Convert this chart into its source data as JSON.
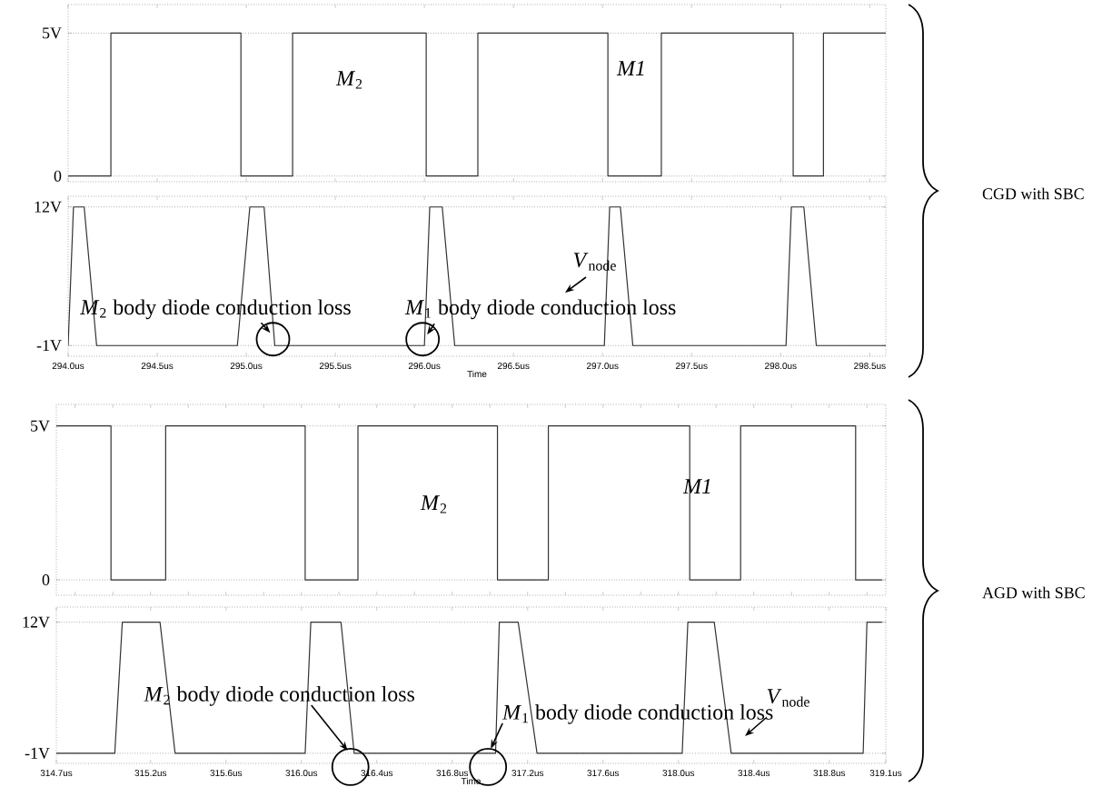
{
  "chart_data": [
    {
      "type": "line",
      "xlim": [
        294.0,
        298.59
      ],
      "ylim": [
        -0.2,
        6
      ],
      "yticks": [
        0,
        {
          "value": 5,
          "label": "5V"
        }
      ],
      "grid": "y",
      "tick_labels": "y",
      "series": [
        {
          "color": "#333333",
          "x": [
            294.0,
            294.24,
            294.24,
            294.97,
            294.97,
            295.26,
            295.26,
            296.01,
            296.01,
            296.3,
            296.3,
            297.03,
            297.03,
            297.33,
            297.33,
            298.07,
            298.07,
            298.24,
            298.24,
            298.59
          ],
          "values": [
            0,
            0,
            5,
            5,
            0,
            0,
            5,
            5,
            0,
            0,
            5,
            5,
            0,
            0,
            5,
            5,
            0,
            0,
            5,
            5
          ]
        }
      ],
      "annotations": [
        "*M*$_{2}$",
        "*M1*",
        "CGD with SBC"
      ]
    },
    {
      "type": "line",
      "xlabel": "Time",
      "xlim": [
        294.0,
        298.59
      ],
      "xticks": [
        {
          "value": 294.0,
          "label": "294.0us"
        },
        {
          "value": 294.5,
          "label": "294.5us"
        },
        {
          "value": 295.0,
          "label": "295.0us"
        },
        {
          "value": 295.5,
          "label": "295.5us"
        },
        {
          "value": 296.0,
          "label": "296.0us"
        },
        {
          "value": 296.5,
          "label": "296.5us"
        },
        {
          "value": 297.0,
          "label": "297.0us"
        },
        {
          "value": 297.5,
          "label": "297.5us"
        },
        {
          "value": 298.0,
          "label": "298.0us"
        },
        {
          "value": 298.5,
          "label": "298.5us"
        }
      ],
      "ylim": [
        -2,
        13
      ],
      "yticks": [
        {
          "value": -1,
          "label": "-1V"
        },
        {
          "value": 12,
          "label": "12V"
        }
      ],
      "grid": "y",
      "series": [
        {
          "color": "#333333",
          "x": [
            294.0,
            294.03,
            294.09,
            294.16,
            294.95,
            295.02,
            295.1,
            295.16,
            296.0,
            296.03,
            296.1,
            296.17,
            297.01,
            297.04,
            297.1,
            297.17,
            298.03,
            298.06,
            298.13,
            298.2,
            298.59
          ],
          "values": [
            -1,
            12,
            12,
            -1,
            -1,
            12,
            12,
            -1,
            -1,
            12,
            12,
            -1,
            -1,
            12,
            12,
            -1,
            -1,
            12,
            12,
            -1,
            -1
          ]
        }
      ],
      "annotations": [
        {
          "text": "*M*$_{2}$ body diode conduction loss",
          "x": 295.15,
          "y": -1
        },
        {
          "text": "*M*$_{1}$ body diode conduction loss",
          "x": 296.0,
          "y": -1
        },
        "*V*$_{node}$"
      ]
    },
    {
      "type": "line",
      "xlim": [
        314.7,
        319.1
      ],
      "ylim": [
        -0.5,
        5.7
      ],
      "yticks": [
        0,
        {
          "value": 5,
          "label": "5V"
        }
      ],
      "grid": "y",
      "tick_labels": "y",
      "series": [
        {
          "color": "#333333",
          "x": [
            314.7,
            314.99,
            314.99,
            315.28,
            315.28,
            316.02,
            316.02,
            316.3,
            316.3,
            317.04,
            317.04,
            317.31,
            317.31,
            318.06,
            318.06,
            318.33,
            318.33,
            318.94,
            318.94,
            319.08
          ],
          "values": [
            5,
            5,
            0,
            0,
            5,
            5,
            0,
            0,
            5,
            5,
            0,
            0,
            5,
            5,
            0,
            0,
            5,
            5,
            0,
            0
          ]
        }
      ],
      "annotations": [
        "*M*$_{2}$",
        "*M1*",
        "AGD with SBC"
      ]
    },
    {
      "type": "line",
      "xlabel": "Time",
      "xlim": [
        314.7,
        319.1
      ],
      "xticks": [
        {
          "value": 314.7,
          "label": "314.7us"
        },
        {
          "value": 315.2,
          "label": "315.2us"
        },
        {
          "value": 315.6,
          "label": "315.6us"
        },
        {
          "value": 316.0,
          "label": "316.0us"
        },
        {
          "value": 316.4,
          "label": "316.4us"
        },
        {
          "value": 316.8,
          "label": "316.8us"
        },
        {
          "value": 317.2,
          "label": "317.2us"
        },
        {
          "value": 317.6,
          "label": "317.6us"
        },
        {
          "value": 318.0,
          "label": "318.0us"
        },
        {
          "value": 318.4,
          "label": "318.4us"
        },
        {
          "value": 318.8,
          "label": "318.8us"
        },
        {
          "value": 319.1,
          "label": "319.1us"
        }
      ],
      "ylim": [
        -2,
        13.5
      ],
      "yticks": [
        {
          "value": -1,
          "label": "-1V"
        },
        {
          "value": 12,
          "label": "12V"
        }
      ],
      "grid": "y",
      "series": [
        {
          "color": "#333333",
          "x": [
            314.7,
            315.01,
            315.05,
            315.25,
            315.33,
            316.02,
            316.05,
            316.21,
            316.28,
            317.03,
            317.05,
            317.15,
            317.25,
            318.02,
            318.05,
            318.19,
            318.28,
            318.98,
            319.0,
            319.08
          ],
          "values": [
            -1,
            -1,
            12,
            12,
            -1,
            -1,
            12,
            12,
            -1,
            -1,
            12,
            12,
            -1,
            -1,
            12,
            12,
            -1,
            -1,
            12,
            12
          ]
        }
      ],
      "annotations": [
        {
          "text": "*M*$_{2}$ body diode conduction loss",
          "x": 316.26,
          "y": -1
        },
        {
          "text": "*M*$_{1}$ body diode conduction loss",
          "x": 316.99,
          "y": -1
        },
        "*V*$_{node}$"
      ]
    }
  ]
}
